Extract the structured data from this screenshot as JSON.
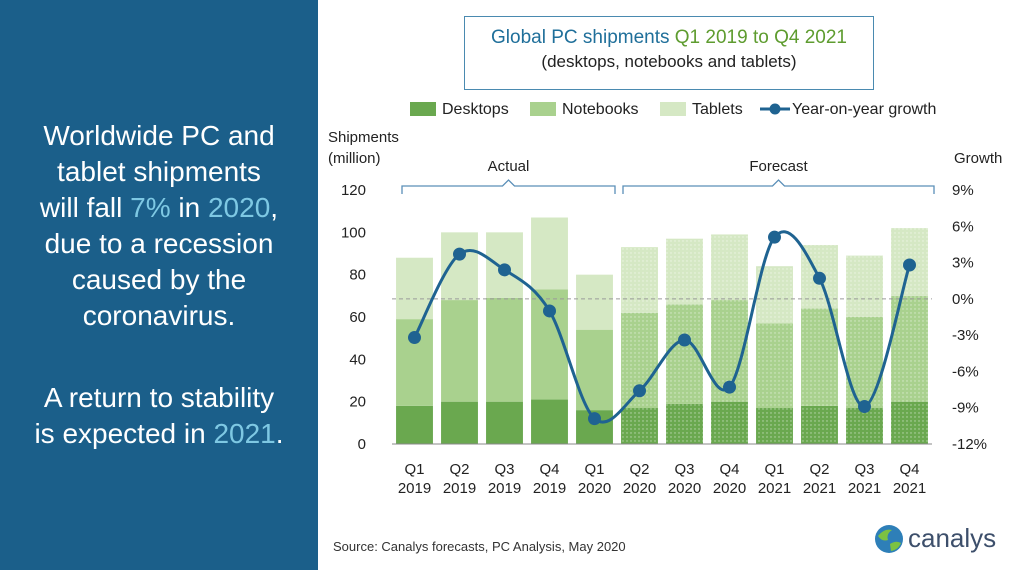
{
  "left_panel": {
    "line1": "Worldwide PC and",
    "line2": "tablet shipments",
    "line3_pre": "will fall ",
    "line3_pct": "7%",
    "line3_mid": " in ",
    "line3_year": "2020",
    "line3_post": ",",
    "line4": "due to a recession",
    "line5": "caused by the",
    "line6": "coronavirus.",
    "sub1": "A return to stability",
    "sub2_pre": "is expected in ",
    "sub2_year": "2021",
    "sub2_post": "."
  },
  "title": {
    "part1": "Global PC shipments ",
    "part2": "Q1 2019 to Q4 2021",
    "line2": "(desktops, notebooks and tablets)"
  },
  "source": "Source:  Canalys forecasts, PC Analysis, May 2020",
  "logo": "canalys",
  "colors": {
    "desktops": "#6aa84f",
    "notebooks": "#a9d18e",
    "tablets": "#d5e8c4",
    "growth_line": "#1f6391",
    "panel": "#1b5f8a"
  },
  "chart_data": {
    "type": "bar",
    "stacked": true,
    "categories": [
      "Q1 2019",
      "Q2 2019",
      "Q3 2019",
      "Q4 2019",
      "Q1 2020",
      "Q2 2020",
      "Q3 2020",
      "Q4 2020",
      "Q1 2021",
      "Q2 2021",
      "Q3 2021",
      "Q4 2021"
    ],
    "category_lines": [
      [
        "Q1",
        "2019"
      ],
      [
        "Q2",
        "2019"
      ],
      [
        "Q3",
        "2019"
      ],
      [
        "Q4",
        "2019"
      ],
      [
        "Q1",
        "2020"
      ],
      [
        "Q2",
        "2020"
      ],
      [
        "Q3",
        "2020"
      ],
      [
        "Q4",
        "2020"
      ],
      [
        "Q1",
        "2021"
      ],
      [
        "Q2",
        "2021"
      ],
      [
        "Q3",
        "2021"
      ],
      [
        "Q4",
        "2021"
      ]
    ],
    "series": [
      {
        "name": "Desktops",
        "values": [
          18,
          20,
          20,
          21,
          16,
          17,
          19,
          20,
          17,
          18,
          17,
          20
        ]
      },
      {
        "name": "Notebooks",
        "values": [
          41,
          48,
          49,
          52,
          38,
          45,
          47,
          48,
          40,
          46,
          43,
          50
        ]
      },
      {
        "name": "Tablets",
        "values": [
          29,
          32,
          31,
          34,
          26,
          31,
          31,
          31,
          27,
          30,
          29,
          32
        ]
      }
    ],
    "growth": {
      "name": "Year-on-year growth",
      "values": [
        -3.2,
        3.7,
        2.4,
        -1.0,
        -9.9,
        -7.6,
        -3.4,
        -7.3,
        5.1,
        1.7,
        -8.9,
        2.8
      ]
    },
    "actual_count": 5,
    "ylabel": "Shipments\n(million)",
    "ylabel_lines": [
      "Shipments",
      "(million)"
    ],
    "y2label": "Growth",
    "ylim": [
      0,
      120
    ],
    "yticks": [
      "0",
      "20",
      "40",
      "60",
      "80",
      "100",
      "120"
    ],
    "y2lim": [
      -12,
      9
    ],
    "y2ticks": [
      "-12%",
      "-9%",
      "-6%",
      "-3%",
      "0%",
      "3%",
      "6%",
      "9%"
    ],
    "actual_label": "Actual",
    "forecast_label": "Forecast",
    "legend_position": "top"
  }
}
